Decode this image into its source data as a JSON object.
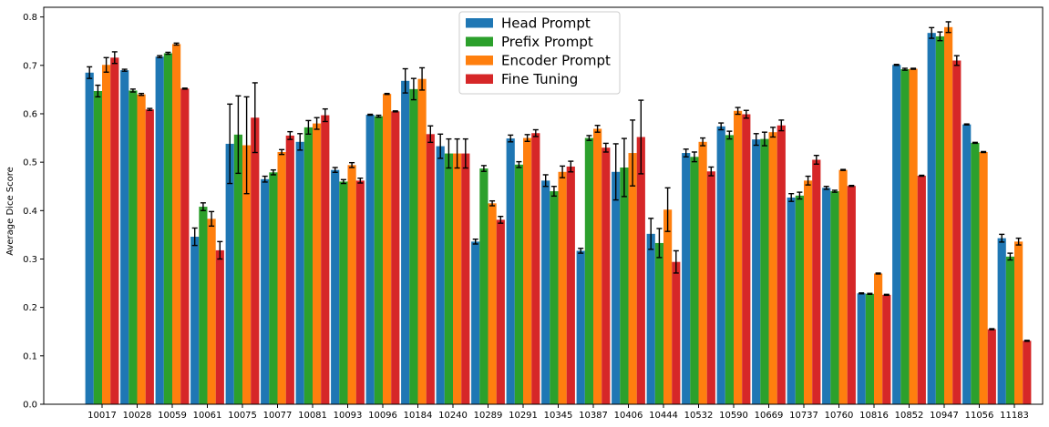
{
  "chart_data": {
    "type": "bar",
    "title": "",
    "xlabel": "",
    "ylabel": "Average Dice Score",
    "ylim": [
      0,
      0.82
    ],
    "yticks": [
      0.0,
      0.1,
      0.2,
      0.3,
      0.4,
      0.5,
      0.6,
      0.7,
      0.8
    ],
    "grid": false,
    "legend_position": "top-center",
    "categories": [
      "10017",
      "10028",
      "10059",
      "10061",
      "10075",
      "10077",
      "10081",
      "10093",
      "10096",
      "10184",
      "10240",
      "10289",
      "10291",
      "10345",
      "10387",
      "10406",
      "10444",
      "10532",
      "10590",
      "10669",
      "10737",
      "10760",
      "10816",
      "10852",
      "10947",
      "11056",
      "11183"
    ],
    "series": [
      {
        "name": "Head Prompt",
        "color": "#1f77b4",
        "values": [
          0.685,
          0.69,
          0.718,
          0.346,
          0.538,
          0.465,
          0.542,
          0.484,
          0.598,
          0.668,
          0.533,
          0.336,
          0.549,
          0.462,
          0.317,
          0.48,
          0.352,
          0.519,
          0.574,
          0.547,
          0.427,
          0.447,
          0.229,
          0.701,
          0.767,
          0.578,
          0.343
        ],
        "errors": [
          0.012,
          0.002,
          0.002,
          0.018,
          0.082,
          0.006,
          0.017,
          0.005,
          0.001,
          0.025,
          0.025,
          0.005,
          0.007,
          0.012,
          0.005,
          0.058,
          0.032,
          0.008,
          0.007,
          0.012,
          0.008,
          0.003,
          0.001,
          0.001,
          0.011,
          0.001,
          0.008
        ]
      },
      {
        "name": "Prefix Prompt",
        "color": "#2ca02c",
        "values": [
          0.647,
          0.648,
          0.725,
          0.408,
          0.557,
          0.479,
          0.572,
          0.46,
          0.595,
          0.651,
          0.518,
          0.487,
          0.495,
          0.44,
          0.55,
          0.489,
          0.333,
          0.511,
          0.556,
          0.548,
          0.431,
          0.44,
          0.228,
          0.692,
          0.76,
          0.54,
          0.305
        ],
        "errors": [
          0.012,
          0.003,
          0.002,
          0.008,
          0.08,
          0.005,
          0.014,
          0.004,
          0.002,
          0.022,
          0.03,
          0.006,
          0.006,
          0.01,
          0.005,
          0.06,
          0.03,
          0.01,
          0.008,
          0.014,
          0.007,
          0.002,
          0.001,
          0.002,
          0.009,
          0.001,
          0.007
        ]
      },
      {
        "name": "Encoder Prompt",
        "color": "#ff7f0e",
        "values": [
          0.701,
          0.64,
          0.744,
          0.383,
          0.535,
          0.521,
          0.58,
          0.494,
          0.641,
          0.672,
          0.518,
          0.415,
          0.55,
          0.48,
          0.569,
          0.519,
          0.402,
          0.542,
          0.606,
          0.562,
          0.462,
          0.484,
          0.27,
          0.693,
          0.779,
          0.521,
          0.336
        ],
        "errors": [
          0.015,
          0.002,
          0.002,
          0.015,
          0.1,
          0.005,
          0.012,
          0.005,
          0.001,
          0.023,
          0.03,
          0.005,
          0.007,
          0.012,
          0.007,
          0.068,
          0.045,
          0.008,
          0.007,
          0.01,
          0.009,
          0.001,
          0.001,
          0.001,
          0.011,
          0.001,
          0.007
        ]
      },
      {
        "name": "Fine Tuning",
        "color": "#d62728",
        "values": [
          0.716,
          0.609,
          0.652,
          0.318,
          0.592,
          0.555,
          0.597,
          0.462,
          0.605,
          0.558,
          0.518,
          0.381,
          0.56,
          0.491,
          0.53,
          0.552,
          0.294,
          0.481,
          0.599,
          0.576,
          0.505,
          0.451,
          0.226,
          0.472,
          0.71,
          0.155,
          0.131
        ],
        "errors": [
          0.012,
          0.002,
          0.001,
          0.018,
          0.072,
          0.008,
          0.013,
          0.005,
          0.001,
          0.017,
          0.03,
          0.007,
          0.007,
          0.011,
          0.009,
          0.076,
          0.023,
          0.009,
          0.008,
          0.011,
          0.009,
          0.001,
          0.001,
          0.001,
          0.01,
          0.001,
          0.001
        ]
      }
    ]
  }
}
